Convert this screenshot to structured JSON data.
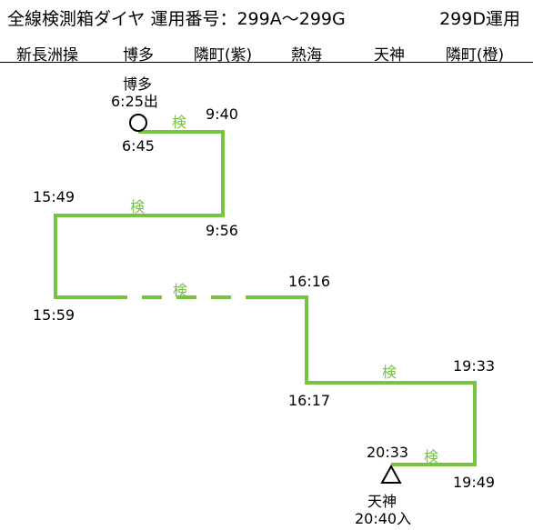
{
  "header": {
    "title": "全線検測箱ダイヤ 運用番号：299A～299G",
    "operation": "299D運用"
  },
  "stations": [
    "新長洲操",
    "博多",
    "隣町(紫)",
    "熱海",
    "天神",
    "隣町(橙)"
  ],
  "diagram": {
    "line_color": "#76c442",
    "inspection_label": "検",
    "start": {
      "station": "博多",
      "time": "6:25出"
    },
    "end": {
      "station": "天神",
      "time": "20:40入"
    },
    "times": {
      "t1": "6:45",
      "t2": "9:40",
      "t3": "9:56",
      "t4": "15:49",
      "t5": "15:59",
      "t6": "16:16",
      "t7": "16:17",
      "t8": "19:33",
      "t9": "19:49",
      "t10": "20:33"
    }
  }
}
